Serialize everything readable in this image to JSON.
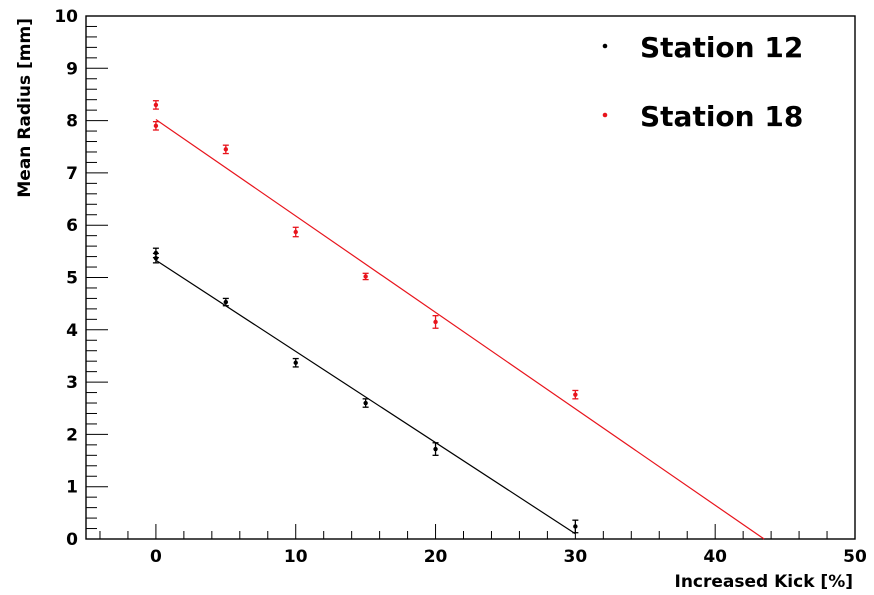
{
  "chart_data": {
    "type": "scatter",
    "xlabel": "Increased Kick [%]",
    "ylabel": "Mean Radius [mm]",
    "xlim": [
      -5,
      50
    ],
    "ylim": [
      0,
      10
    ],
    "x_ticks": [
      0,
      10,
      20,
      30,
      40,
      50
    ],
    "y_ticks": [
      0,
      1,
      2,
      3,
      4,
      5,
      6,
      7,
      8,
      9,
      10
    ],
    "grid": false,
    "legend_position": "top-right",
    "series": [
      {
        "name": "Station 12",
        "color": "#000000",
        "points": [
          {
            "x": 0,
            "y": 5.47,
            "err": 0.09
          },
          {
            "x": 0,
            "y": 5.37,
            "err": 0.09
          },
          {
            "x": 5,
            "y": 4.53,
            "err": 0.07
          },
          {
            "x": 10,
            "y": 3.37,
            "err": 0.08
          },
          {
            "x": 15,
            "y": 2.6,
            "err": 0.08
          },
          {
            "x": 20,
            "y": 1.72,
            "err": 0.12
          },
          {
            "x": 30,
            "y": 0.24,
            "err": 0.12
          }
        ],
        "fit": {
          "x": [
            0,
            30
          ],
          "y": [
            5.33,
            0.1
          ]
        }
      },
      {
        "name": "Station 18",
        "color": "#e8141c",
        "points": [
          {
            "x": 0,
            "y": 8.3,
            "err": 0.08
          },
          {
            "x": 0,
            "y": 7.9,
            "err": 0.08
          },
          {
            "x": 5,
            "y": 7.45,
            "err": 0.08
          },
          {
            "x": 10,
            "y": 5.87,
            "err": 0.09
          },
          {
            "x": 15,
            "y": 5.02,
            "err": 0.06
          },
          {
            "x": 20,
            "y": 4.15,
            "err": 0.12
          },
          {
            "x": 30,
            "y": 2.76,
            "err": 0.08
          }
        ],
        "fit": {
          "x": [
            0,
            43.5
          ],
          "y": [
            8.02,
            0
          ]
        }
      }
    ]
  }
}
